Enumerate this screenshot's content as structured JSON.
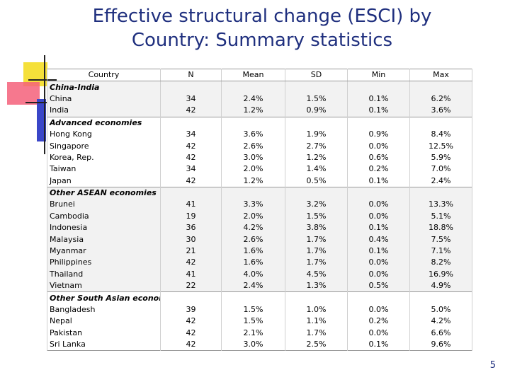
{
  "title": {
    "line1": "Effective structural change (ESCI) by",
    "line2": "Country: Summary statistics"
  },
  "table": {
    "headers": [
      "Country",
      "N",
      "Mean",
      "SD",
      "Min",
      "Max"
    ],
    "rows": [
      {
        "type": "group",
        "country": "China-India"
      },
      {
        "type": "data",
        "country": "China",
        "n": "34",
        "mean": "2.4%",
        "sd": "1.5%",
        "min": "0.1%",
        "max": "6.2%"
      },
      {
        "type": "data",
        "country": "India",
        "n": "42",
        "mean": "1.2%",
        "sd": "0.9%",
        "min": "0.1%",
        "max": "3.6%"
      },
      {
        "type": "group",
        "country": "Advanced economies"
      },
      {
        "type": "data",
        "country": "Hong Kong",
        "n": "34",
        "mean": "3.6%",
        "sd": "1.9%",
        "min": "0.9%",
        "max": "8.4%"
      },
      {
        "type": "data",
        "country": "Singapore",
        "n": "42",
        "mean": "2.6%",
        "sd": "2.7%",
        "min": "0.0%",
        "max": "12.5%"
      },
      {
        "type": "data",
        "country": "Korea, Rep.",
        "n": "42",
        "mean": "3.0%",
        "sd": "1.2%",
        "min": "0.6%",
        "max": "5.9%"
      },
      {
        "type": "data",
        "country": "Taiwan",
        "n": "34",
        "mean": "2.0%",
        "sd": "1.4%",
        "min": "0.2%",
        "max": "7.0%"
      },
      {
        "type": "data",
        "country": "Japan",
        "n": "42",
        "mean": "1.2%",
        "sd": "0.5%",
        "min": "0.1%",
        "max": "2.4%"
      },
      {
        "type": "group",
        "country": "Other ASEAN economies"
      },
      {
        "type": "data",
        "country": "Brunei",
        "n": "41",
        "mean": "3.3%",
        "sd": "3.2%",
        "min": "0.0%",
        "max": "13.3%"
      },
      {
        "type": "data",
        "country": "Cambodia",
        "n": "19",
        "mean": "2.0%",
        "sd": "1.5%",
        "min": "0.0%",
        "max": "5.1%"
      },
      {
        "type": "data",
        "country": "Indonesia",
        "n": "36",
        "mean": "4.2%",
        "sd": "3.8%",
        "min": "0.1%",
        "max": "18.8%"
      },
      {
        "type": "data",
        "country": "Malaysia",
        "n": "30",
        "mean": "2.6%",
        "sd": "1.7%",
        "min": "0.4%",
        "max": "7.5%"
      },
      {
        "type": "data",
        "country": "Myanmar",
        "n": "21",
        "mean": "1.6%",
        "sd": "1.7%",
        "min": "0.1%",
        "max": "7.1%"
      },
      {
        "type": "data",
        "country": "Philippines",
        "n": "42",
        "mean": "1.6%",
        "sd": "1.7%",
        "min": "0.0%",
        "max": "8.2%"
      },
      {
        "type": "data",
        "country": "Thailand",
        "n": "41",
        "mean": "4.0%",
        "sd": "4.5%",
        "min": "0.0%",
        "max": "16.9%"
      },
      {
        "type": "data",
        "country": "Vietnam",
        "n": "22",
        "mean": "2.4%",
        "sd": "1.3%",
        "min": "0.5%",
        "max": "4.9%"
      },
      {
        "type": "group",
        "country": "Other South Asian economies"
      },
      {
        "type": "data",
        "country": "Bangladesh",
        "n": "39",
        "mean": "1.5%",
        "sd": "1.0%",
        "min": "0.0%",
        "max": "5.0%"
      },
      {
        "type": "data",
        "country": "Nepal",
        "n": "42",
        "mean": "1.5%",
        "sd": "1.1%",
        "min": "0.2%",
        "max": "4.2%"
      },
      {
        "type": "data",
        "country": "Pakistan",
        "n": "42",
        "mean": "2.1%",
        "sd": "1.7%",
        "min": "0.0%",
        "max": "6.6%"
      },
      {
        "type": "data",
        "country": "Sri Lanka",
        "n": "42",
        "mean": "3.0%",
        "sd": "2.5%",
        "min": "0.1%",
        "max": "9.6%"
      }
    ]
  },
  "page_number": "5"
}
